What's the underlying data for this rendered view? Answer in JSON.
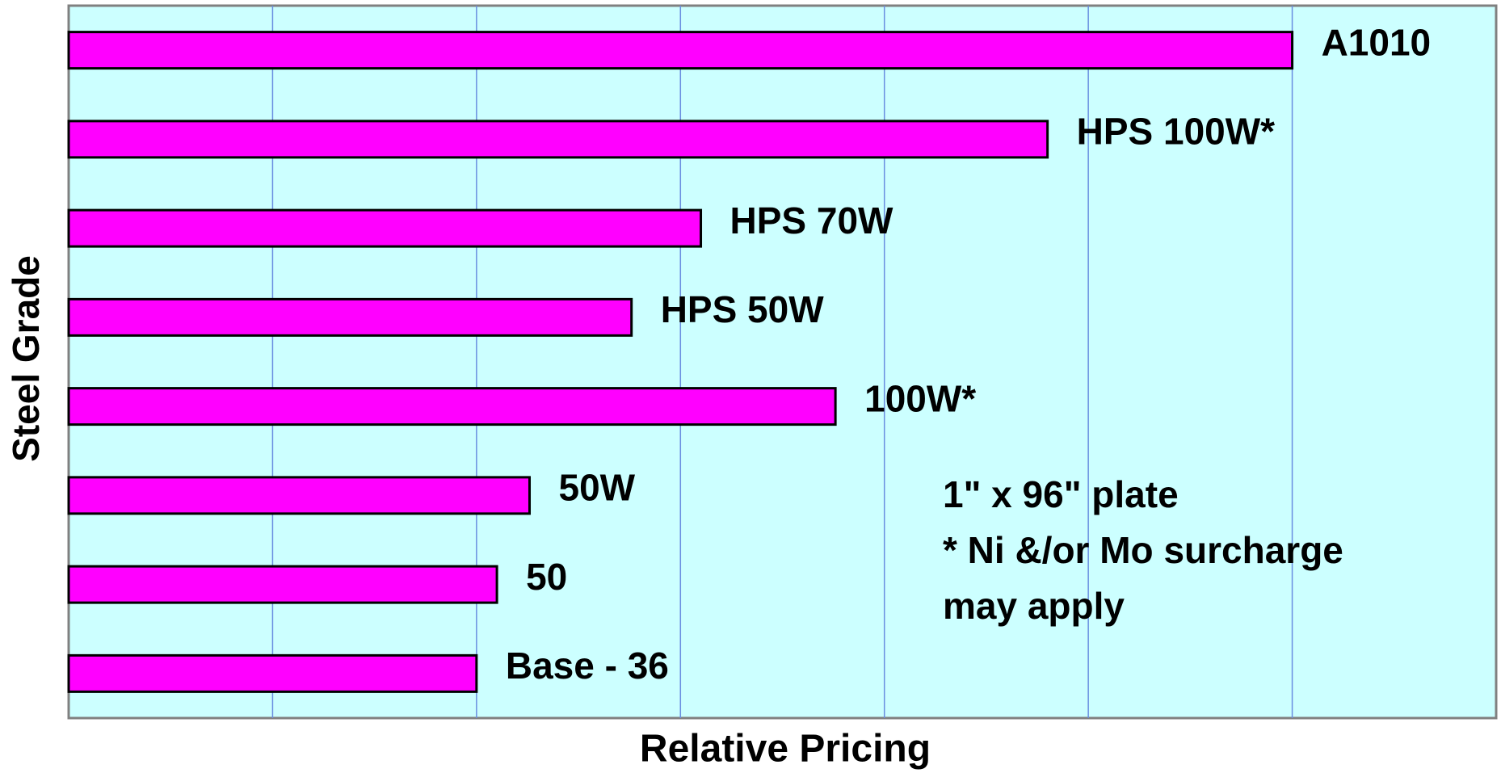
{
  "chart_data": {
    "type": "barh",
    "x_label": "Relative Pricing",
    "y_label": "Steel Grade",
    "categories": [
      "A1010",
      "HPS 100W*",
      "HPS 70W",
      "HPS 50W",
      "100W*",
      "50W",
      "50",
      "Base - 36"
    ],
    "values": [
      3.0,
      2.4,
      1.55,
      1.38,
      1.88,
      1.13,
      1.05,
      1.0
    ],
    "color": "#ff00ff",
    "xlim": [
      0,
      3.5
    ],
    "xticks": [
      0.5,
      1,
      1.5,
      2,
      2.5,
      3
    ],
    "grid": true,
    "annotations": [
      "1\" x 96\" plate",
      "* Ni &/or Mo surcharge",
      "may apply"
    ]
  }
}
